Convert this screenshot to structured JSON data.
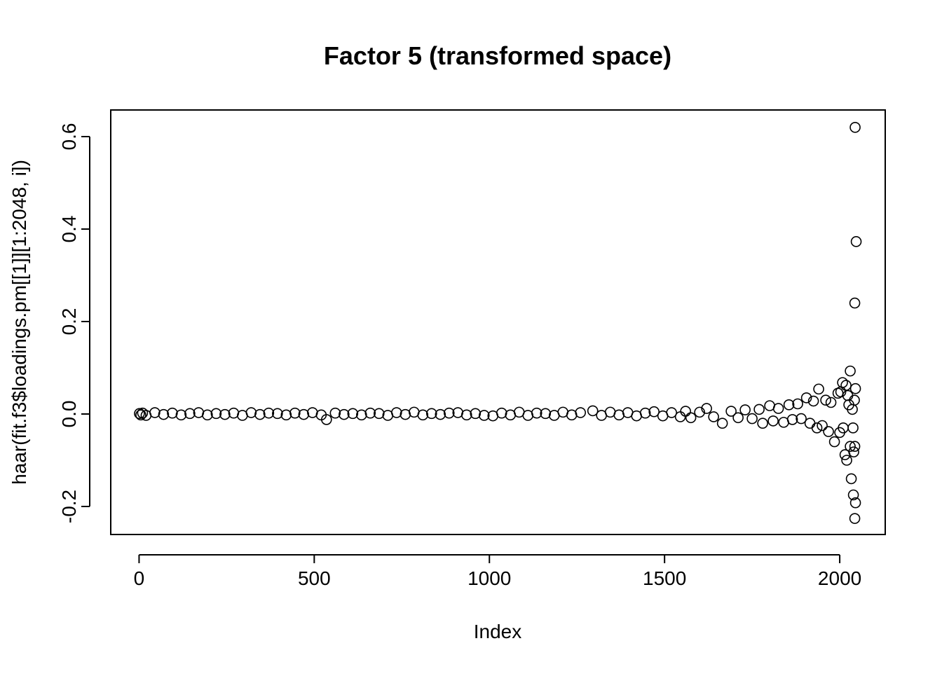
{
  "chart_data": {
    "type": "scatter",
    "title": "Factor 5 (transformed space)",
    "x_label": "Index",
    "y_label": "haar(fit.f3$loadings.pm[[1]][1:2048, i])",
    "xlim": [
      -80.88,
      2129.88
    ],
    "ylim": [
      -0.2606,
      0.6576
    ],
    "xticks": [
      0,
      500,
      1000,
      1500,
      2000
    ],
    "yticks": [
      -0.2,
      {
        "value": 0,
        "label": "0.0"
      },
      0.2,
      0.4,
      0.6
    ],
    "color": "#000000",
    "x": [
      1,
      5,
      10,
      20,
      45,
      70,
      95,
      120,
      145,
      170,
      195,
      220,
      245,
      270,
      295,
      320,
      345,
      370,
      395,
      420,
      445,
      470,
      495,
      520,
      535,
      560,
      585,
      610,
      635,
      660,
      685,
      710,
      735,
      760,
      785,
      810,
      835,
      860,
      885,
      910,
      935,
      960,
      985,
      1010,
      1035,
      1060,
      1085,
      1110,
      1135,
      1160,
      1185,
      1210,
      1235,
      1260,
      1295,
      1320,
      1345,
      1370,
      1395,
      1420,
      1445,
      1470,
      1495,
      1520,
      1545,
      1560,
      1575,
      1600,
      1620,
      1640,
      1665,
      1690,
      1710,
      1730,
      1750,
      1770,
      1780,
      1800,
      1810,
      1825,
      1840,
      1855,
      1865,
      1880,
      1890,
      1905,
      1915,
      1925,
      1935,
      1940,
      1950,
      1960,
      1968,
      1975,
      1985,
      1995,
      2000,
      2003,
      2008,
      2010,
      2015,
      2018,
      2020,
      2023,
      2026,
      2030,
      2030,
      2033,
      2036,
      2038,
      2039,
      2040,
      2042,
      2043,
      2043,
      2043,
      2044,
      2045,
      2045,
      2047
    ],
    "values": [
      0.001,
      -0.002,
      0.002,
      -0.003,
      0.003,
      -0.001,
      0.002,
      -0.002,
      0.001,
      0.003,
      -0.002,
      0.001,
      -0.001,
      0.002,
      -0.003,
      0.003,
      -0.001,
      0.002,
      0.001,
      -0.002,
      0.002,
      -0.001,
      0.003,
      -0.002,
      -0.012,
      0.002,
      -0.001,
      0.001,
      -0.002,
      0.002,
      0.001,
      -0.003,
      0.003,
      -0.001,
      0.004,
      -0.002,
      0.001,
      -0.001,
      0.002,
      0.003,
      -0.002,
      0.001,
      -0.003,
      -0.004,
      0.002,
      -0.002,
      0.004,
      -0.003,
      0.002,
      0.001,
      -0.003,
      0.004,
      -0.002,
      0.003,
      0.007,
      -0.003,
      0.004,
      -0.002,
      0.003,
      -0.004,
      0.002,
      0.005,
      -0.004,
      0.003,
      -0.006,
      0.006,
      -0.008,
      0.004,
      0.012,
      -0.006,
      -0.02,
      0.006,
      -0.008,
      0.009,
      -0.01,
      0.01,
      -0.02,
      0.018,
      -0.015,
      0.012,
      -0.018,
      0.02,
      -0.012,
      0.022,
      -0.01,
      0.035,
      -0.02,
      0.028,
      -0.03,
      0.054,
      -0.025,
      0.03,
      -0.038,
      0.025,
      -0.06,
      0.045,
      -0.04,
      0.048,
      0.068,
      -0.03,
      -0.088,
      0.062,
      -0.1,
      0.04,
      0.02,
      0.093,
      -0.07,
      -0.14,
      0.01,
      -0.03,
      -0.175,
      -0.082,
      0.03,
      -0.07,
      -0.226,
      0.24,
      0.62,
      -0.192,
      0.055,
      0.373
    ]
  }
}
